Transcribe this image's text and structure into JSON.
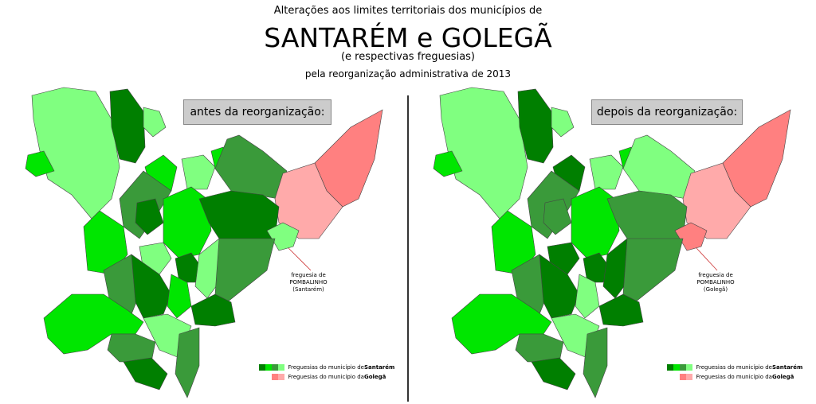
{
  "title": {
    "line1": "Alterações aos limites territoriais dos municípios de",
    "line2": "SANTARÉM e GOLEGÃ",
    "line3": "(e respectivas freguesias)",
    "line4": "pela reorganização administrativa de 2013"
  },
  "left_panel": {
    "label": "antes da reorganização:",
    "note": {
      "line1": "freguesia de",
      "line2": "POMBALINHO",
      "line3": "(Santarém)"
    }
  },
  "right_panel": {
    "label": "depois da reorganização:",
    "note": {
      "line1": "freguesia de",
      "line2": "POMBALINHO",
      "line3": "(Golegã)"
    }
  },
  "legend": {
    "santarem_prefix": "Freguesias do município de ",
    "santarem_name": "Santarém",
    "golega_prefix": "Freguesias do município da ",
    "golega_name": "Golegã"
  },
  "colors": {
    "santarem": [
      "#007f00",
      "#00e600",
      "#3a9a3a",
      "#80ff80"
    ],
    "golega": [
      "#ff8080",
      "#ffaaaa"
    ]
  }
}
